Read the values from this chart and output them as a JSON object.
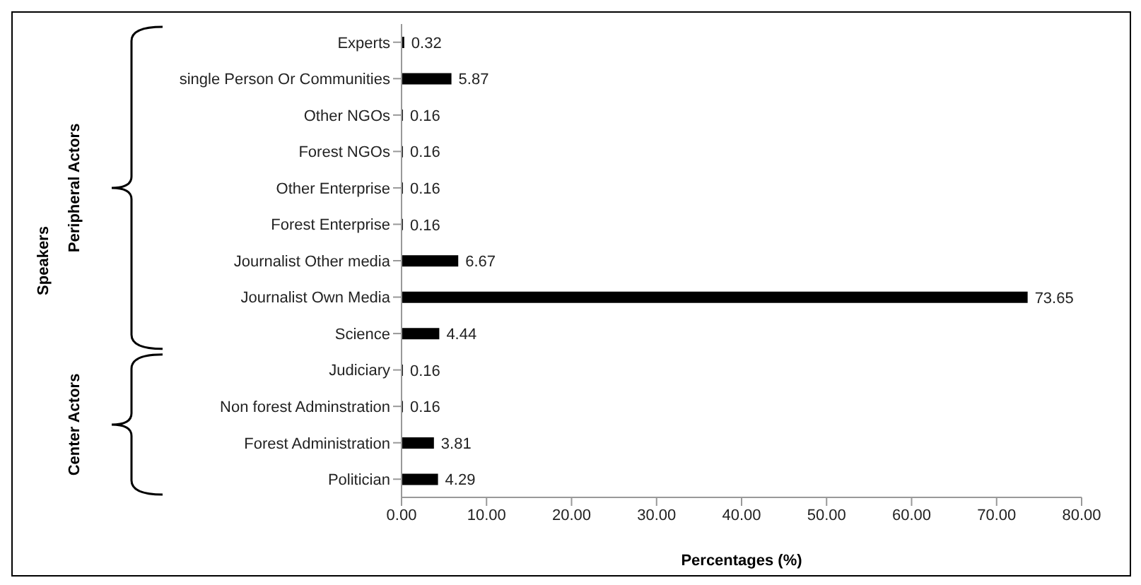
{
  "chart_data": {
    "type": "bar",
    "orientation": "horizontal",
    "xlabel": "Percentages (%)",
    "categories": [
      "Experts",
      "single Person Or Communities",
      "Other NGOs",
      "Forest NGOs",
      "Other Enterprise",
      "Forest Enterprise",
      "Journalist  Other media",
      "Journalist Own Media",
      "Science",
      "Judiciary",
      "Non forest Adminstration",
      "Forest Administration",
      "Politician"
    ],
    "values": [
      0.32,
      5.87,
      0.16,
      0.16,
      0.16,
      0.16,
      6.67,
      73.65,
      4.44,
      0.16,
      0.16,
      3.81,
      4.29
    ],
    "color": "#000000",
    "data_labels": true,
    "grid": false,
    "legend": false,
    "xlim": [
      0,
      80
    ],
    "xticks": [
      {
        "value": 0,
        "label": "0.00"
      },
      {
        "value": 10,
        "label": "10.00"
      },
      {
        "value": 20,
        "label": "20.00"
      },
      {
        "value": 30,
        "label": "30.00"
      },
      {
        "value": 40,
        "label": "40.00"
      },
      {
        "value": 50,
        "label": "50.00"
      },
      {
        "value": 60,
        "label": "60.00"
      },
      {
        "value": 70,
        "label": "70.00"
      },
      {
        "value": 80,
        "label": "80.00"
      }
    ],
    "annotations": [
      "Peripheral Actors",
      "Center Actors",
      "Speakers"
    ]
  }
}
